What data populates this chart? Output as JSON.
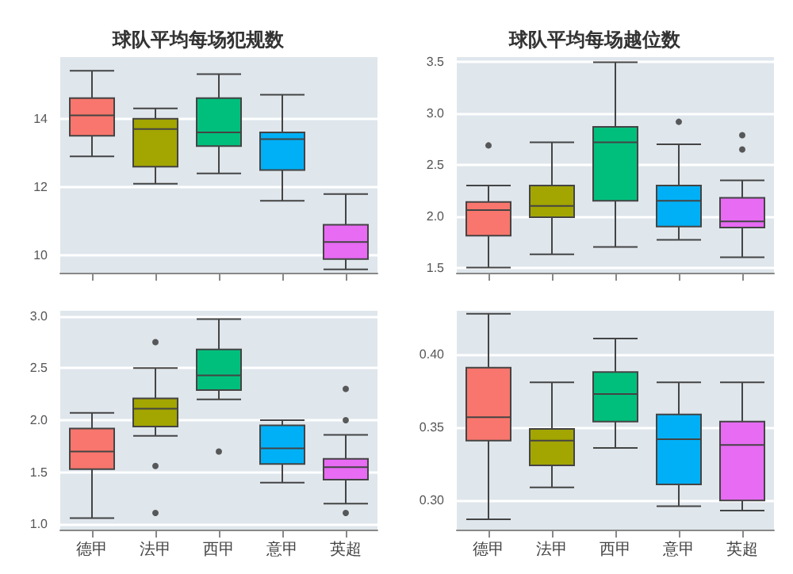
{
  "chart_data": [
    {
      "type": "box",
      "title": "球队平均每场犯规数",
      "categories": [
        null,
        null,
        null,
        null,
        null
      ],
      "colors": [
        "#f8766d",
        "#a3a500",
        "#00bf7d",
        "#00b0f6",
        "#e76bf3"
      ],
      "ylim": [
        9.5,
        15.8
      ],
      "yticks": [
        10,
        12,
        14
      ],
      "grid": "y",
      "tick_labels": "y",
      "boxes": [
        {
          "low": 12.9,
          "q1": 13.5,
          "median": 14.1,
          "q3": 14.6,
          "high": 15.4
        },
        {
          "low": 12.1,
          "q1": 12.6,
          "median": 13.7,
          "q3": 14.0,
          "high": 14.3
        },
        {
          "low": 12.4,
          "q1": 13.2,
          "median": 13.6,
          "q3": 14.6,
          "high": 15.3
        },
        {
          "low": 11.6,
          "q1": 12.5,
          "median": 13.4,
          "q3": 13.6,
          "high": 14.7
        },
        {
          "low": 9.6,
          "q1": 9.9,
          "median": 10.4,
          "q3": 10.9,
          "high": 11.8
        }
      ]
    },
    {
      "type": "box",
      "title": "球队平均每场越位数",
      "categories": [
        null,
        null,
        null,
        null,
        null
      ],
      "colors": [
        "#f8766d",
        "#a3a500",
        "#00bf7d",
        "#00b0f6",
        "#e76bf3"
      ],
      "ylim": [
        1.45,
        3.55
      ],
      "yticks": [
        {
          "value": 1.5,
          "label": "1.5"
        },
        {
          "value": 2,
          "label": "2.0"
        },
        {
          "value": 2.5,
          "label": "2.5"
        },
        {
          "value": 3,
          "label": "3.0"
        },
        {
          "value": 3.5,
          "label": "3.5"
        }
      ],
      "grid": "y",
      "tick_labels": "y",
      "boxes": [
        {
          "low": 1.5,
          "q1": 1.81,
          "median": 2.06,
          "q3": 2.14,
          "high": 2.3,
          "outliers": [
            2.69
          ]
        },
        {
          "low": 1.63,
          "q1": 1.99,
          "median": 2.1,
          "q3": 2.3,
          "high": 2.72
        },
        {
          "low": 1.7,
          "q1": 2.15,
          "median": 2.72,
          "q3": 2.87,
          "high": 3.5
        },
        {
          "low": 1.77,
          "q1": 1.9,
          "median": 2.15,
          "q3": 2.3,
          "high": 2.7,
          "outliers": [
            2.92
          ]
        },
        {
          "low": 1.6,
          "q1": 1.89,
          "median": 1.95,
          "q3": 2.18,
          "high": 2.35,
          "outliers": [
            2.65,
            2.79
          ]
        }
      ]
    },
    {
      "type": "box",
      "categories": [
        "德甲",
        "法甲",
        "西甲",
        "意甲",
        "英超"
      ],
      "colors": [
        "#f8766d",
        "#a3a500",
        "#00bf7d",
        "#00b0f6",
        "#e76bf3"
      ],
      "ylim": [
        0.95,
        3.05
      ],
      "yticks": [
        {
          "value": 1,
          "label": "1.0"
        },
        {
          "value": 1.5,
          "label": "1.5"
        },
        {
          "value": 2,
          "label": "2.0"
        },
        {
          "value": 2.5,
          "label": "2.5"
        },
        {
          "value": 3,
          "label": "3.0"
        }
      ],
      "grid": "y",
      "boxes": [
        {
          "low": 1.06,
          "q1": 1.53,
          "median": 1.7,
          "q3": 1.92,
          "high": 2.07
        },
        {
          "low": 1.85,
          "q1": 1.94,
          "median": 2.11,
          "q3": 2.21,
          "high": 2.5,
          "outliers": [
            1.11,
            1.56,
            2.75
          ]
        },
        {
          "low": 2.2,
          "q1": 2.29,
          "median": 2.43,
          "q3": 2.68,
          "high": 2.97,
          "outliers": [
            1.7
          ]
        },
        {
          "low": 1.4,
          "q1": 1.58,
          "median": 1.73,
          "q3": 1.95,
          "high": 2.0
        },
        {
          "low": 1.2,
          "q1": 1.43,
          "median": 1.55,
          "q3": 1.63,
          "high": 1.86,
          "outliers": [
            1.11,
            2.0,
            2.3
          ]
        }
      ]
    },
    {
      "type": "box",
      "categories": [
        "德甲",
        "法甲",
        "西甲",
        "意甲",
        "英超"
      ],
      "colors": [
        "#f8766d",
        "#a3a500",
        "#00bf7d",
        "#00b0f6",
        "#e76bf3"
      ],
      "ylim": [
        0.28,
        0.43
      ],
      "yticks": [
        {
          "value": 0.3,
          "label": "0.30"
        },
        {
          "value": 0.35,
          "label": "0.35"
        },
        {
          "value": 0.4,
          "label": "0.40"
        }
      ],
      "grid": "y",
      "boxes": [
        {
          "low": 0.287,
          "q1": 0.341,
          "median": 0.357,
          "q3": 0.391,
          "high": 0.428
        },
        {
          "low": 0.309,
          "q1": 0.324,
          "median": 0.341,
          "q3": 0.349,
          "high": 0.381
        },
        {
          "low": 0.336,
          "q1": 0.354,
          "median": 0.373,
          "q3": 0.388,
          "high": 0.411
        },
        {
          "low": 0.296,
          "q1": 0.311,
          "median": 0.342,
          "q3": 0.359,
          "high": 0.381
        },
        {
          "low": 0.293,
          "q1": 0.3,
          "median": 0.338,
          "q3": 0.354,
          "high": 0.381
        }
      ]
    }
  ]
}
